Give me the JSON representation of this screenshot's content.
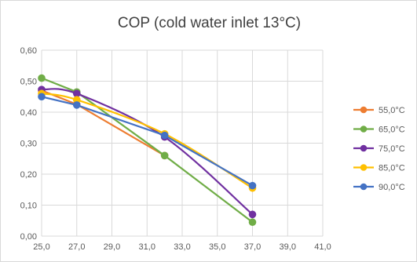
{
  "chart_data": {
    "type": "line",
    "title": "COP (cold water inlet 13°C)",
    "xlabel": "",
    "ylabel": "",
    "xlim": [
      25,
      41
    ],
    "ylim": [
      0,
      0.6
    ],
    "x_ticks": [
      "25,0",
      "27,0",
      "29,0",
      "31,0",
      "33,0",
      "35,0",
      "37,0",
      "39,0",
      "41,0"
    ],
    "y_ticks": [
      "0,00",
      "0,10",
      "0,20",
      "0,30",
      "0,40",
      "0,50",
      "0,60"
    ],
    "grid": true,
    "legend_position": "right",
    "series": [
      {
        "name": "55,0°C",
        "color": "#ed7d31",
        "smooth": false,
        "points": [
          [
            25,
            0.47
          ],
          [
            27,
            0.425
          ],
          [
            32,
            0.26
          ]
        ]
      },
      {
        "name": "65,0°C",
        "color": "#70ad47",
        "smooth": false,
        "points": [
          [
            25,
            0.51
          ],
          [
            27,
            0.465
          ],
          [
            32,
            0.26
          ],
          [
            37,
            0.045
          ]
        ]
      },
      {
        "name": "75,0°C",
        "color": "#7030a0",
        "smooth": true,
        "points": [
          [
            25,
            0.473
          ],
          [
            27,
            0.46
          ],
          [
            32,
            0.32
          ],
          [
            37,
            0.07
          ]
        ]
      },
      {
        "name": "85,0°C",
        "color": "#ffc000",
        "smooth": true,
        "points": [
          [
            25,
            0.46
          ],
          [
            27,
            0.44
          ],
          [
            32,
            0.33
          ],
          [
            37,
            0.155
          ]
        ]
      },
      {
        "name": "90,0°C",
        "color": "#4472c4",
        "smooth": false,
        "points": [
          [
            25,
            0.45
          ],
          [
            27,
            0.423
          ],
          [
            32,
            0.325
          ],
          [
            37,
            0.163
          ]
        ]
      }
    ]
  }
}
